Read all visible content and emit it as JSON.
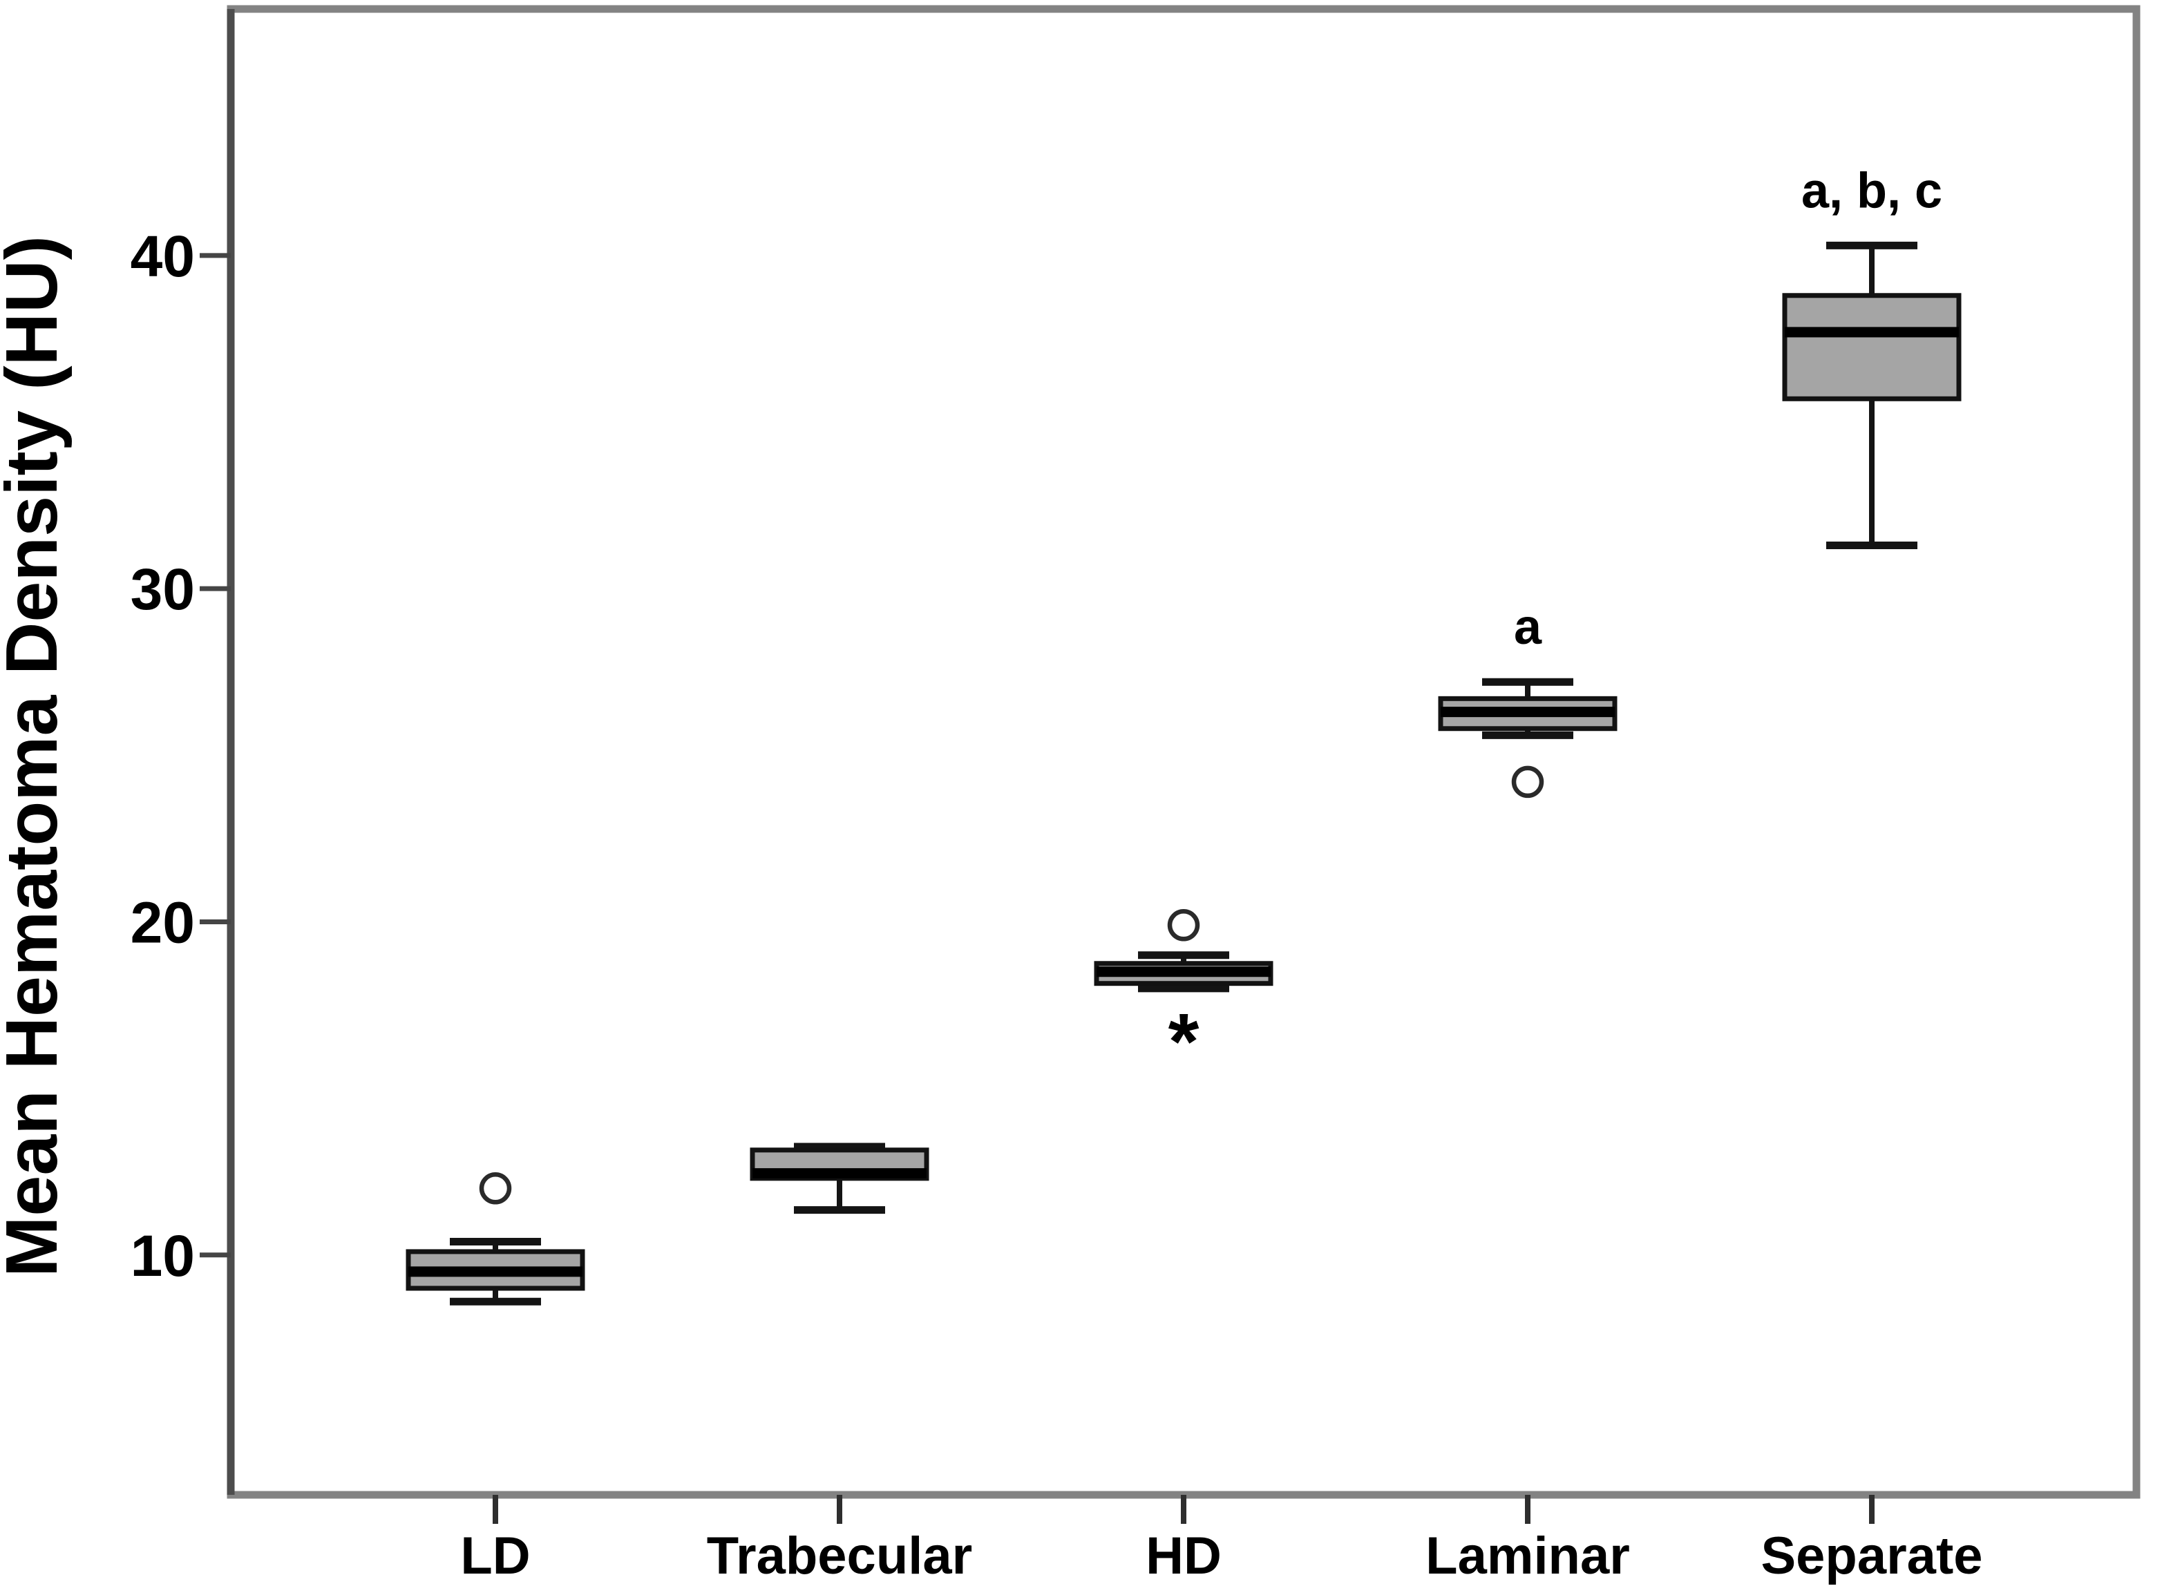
{
  "chart_data": {
    "type": "boxplot",
    "title": "",
    "xlabel": "",
    "ylabel": "Mean Hematoma Density (HU)",
    "ylim": [
      2.8,
      47.4
    ],
    "yticks": [
      10,
      20,
      30,
      40
    ],
    "grid": false,
    "legend": false,
    "categories": [
      "LD",
      "Trabecular",
      "HD",
      "Laminar",
      "Separate"
    ],
    "series": [
      {
        "category": "LD",
        "whisker_low": 8.6,
        "q1": 9.0,
        "median": 9.5,
        "q3": 10.1,
        "whisker_high": 10.4,
        "outliers": [
          {
            "type": "circle",
            "value": 12.0
          }
        ],
        "annotation": ""
      },
      {
        "category": "Trabecular",
        "whisker_low": 11.35,
        "q1": 12.3,
        "median": 12.45,
        "q3": 13.15,
        "whisker_high": 13.25,
        "outliers": [],
        "annotation": ""
      },
      {
        "category": "HD",
        "whisker_low": 18.0,
        "q1": 18.15,
        "median": 18.5,
        "q3": 18.75,
        "whisker_high": 19.0,
        "outliers": [
          {
            "type": "circle",
            "value": 19.9
          },
          {
            "type": "asterisk",
            "value": 16.7
          }
        ],
        "annotation": ""
      },
      {
        "category": "Laminar",
        "whisker_low": 25.6,
        "q1": 25.8,
        "median": 26.3,
        "q3": 26.7,
        "whisker_high": 27.2,
        "outliers": [
          {
            "type": "circle",
            "value": 24.2
          }
        ],
        "annotation": "a"
      },
      {
        "category": "Separate",
        "whisker_low": 31.3,
        "q1": 35.7,
        "median": 37.7,
        "q3": 38.8,
        "whisker_high": 40.3,
        "outliers": [],
        "annotation": "a, b, c"
      }
    ],
    "colors": {
      "background": "#ffffff",
      "box_fill": "#a5a5a5",
      "box_border": "#121212",
      "median": "#000000",
      "whisker": "#141414",
      "outlier": "#2a2a2a",
      "frame": "#838383",
      "left_axis": "#4d4d4d",
      "y_tick": "#454545",
      "x_tick": "#2e2e2e",
      "text": "#000000"
    }
  }
}
